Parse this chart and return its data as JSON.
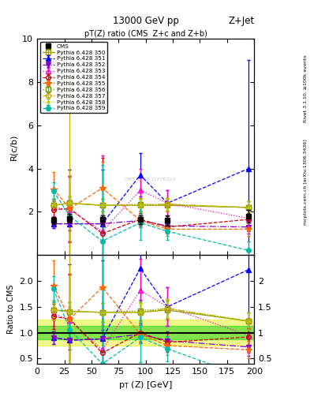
{
  "title_top": "13000 GeV pp",
  "title_right": "Z+Jet",
  "plot_title": "pT(Z) ratio (CMS  Z+c and Z+b)",
  "xlabel": "p_{T} (Z) [GeV]",
  "ylabel_main": "R(c/b)",
  "ylabel_ratio": "Ratio to CMS",
  "side_text": "Rivet 3.1.10, ≥100k events",
  "side_text2": "mcplots.cern.ch [arXiv:1306.3436]",
  "watermark": "CMS_2020_I1776223",
  "xlim": [
    0,
    200
  ],
  "ylim_main": [
    0,
    10
  ],
  "ylim_ratio": [
    0.4,
    2.5
  ],
  "yticks_main": [
    2,
    4,
    6,
    8,
    10
  ],
  "yticks_ratio": [
    0.5,
    1.0,
    1.5,
    2.0
  ],
  "cms_x": [
    15,
    30,
    60,
    95,
    120,
    195
  ],
  "cms_y": [
    1.6,
    1.7,
    1.65,
    1.65,
    1.6,
    1.8
  ],
  "cms_yerr": [
    0.15,
    0.2,
    0.2,
    0.2,
    0.25,
    0.3
  ],
  "series": [
    {
      "label": "Pythia 6.428 350",
      "color": "#999900",
      "linestyle": "-",
      "marker": "s",
      "marker_filled": false,
      "x": [
        15,
        30,
        60,
        95,
        120,
        195
      ],
      "y": [
        2.3,
        2.4,
        2.3,
        2.3,
        2.3,
        2.2
      ],
      "yerr": [
        0.3,
        0.3,
        0.3,
        0.3,
        0.3,
        0.3
      ]
    },
    {
      "label": "Pythia 6.428 351",
      "color": "#0000ff",
      "linestyle": "--",
      "marker": "^",
      "marker_filled": true,
      "x": [
        15,
        30,
        60,
        95,
        120,
        195
      ],
      "y": [
        1.45,
        1.45,
        1.45,
        3.7,
        2.4,
        4.0
      ],
      "yerr": [
        0.2,
        2.5,
        2.5,
        1.0,
        0.6,
        5.0
      ]
    },
    {
      "label": "Pythia 6.428 352",
      "color": "#8800cc",
      "linestyle": "-.",
      "marker": "v",
      "marker_filled": true,
      "x": [
        15,
        30,
        60,
        95,
        120,
        195
      ],
      "y": [
        1.45,
        1.45,
        1.45,
        1.6,
        1.35,
        1.3
      ],
      "yerr": [
        0.2,
        0.3,
        0.3,
        0.3,
        0.3,
        0.3
      ]
    },
    {
      "label": "Pythia 6.428 353",
      "color": "#ff00cc",
      "linestyle": ":",
      "marker": "^",
      "marker_filled": false,
      "x": [
        15,
        30,
        60,
        95,
        120,
        195
      ],
      "y": [
        2.2,
        2.1,
        1.1,
        3.0,
        2.4,
        1.7
      ],
      "yerr": [
        0.4,
        1.5,
        3.5,
        1.0,
        0.6,
        0.6
      ]
    },
    {
      "label": "Pythia 6.428 354",
      "color": "#cc0000",
      "linestyle": "--",
      "marker": "o",
      "marker_filled": false,
      "x": [
        15,
        30,
        60,
        95,
        120,
        195
      ],
      "y": [
        2.1,
        2.15,
        1.0,
        1.65,
        1.3,
        1.65
      ],
      "yerr": [
        0.4,
        1.5,
        3.5,
        0.3,
        0.3,
        0.3
      ]
    },
    {
      "label": "Pythia 6.428 355",
      "color": "#ff6600",
      "linestyle": "--",
      "marker": "*",
      "marker_filled": true,
      "x": [
        15,
        30,
        60,
        95,
        120,
        195
      ],
      "y": [
        3.05,
        2.15,
        3.1,
        1.6,
        1.2,
        1.2
      ],
      "yerr": [
        0.8,
        0.4,
        1.2,
        0.3,
        0.3,
        0.3
      ]
    },
    {
      "label": "Pythia 6.428 356",
      "color": "#669900",
      "linestyle": ":",
      "marker": "s",
      "marker_filled": false,
      "x": [
        15,
        30,
        60,
        95,
        120,
        195
      ],
      "y": [
        2.3,
        2.4,
        2.3,
        2.35,
        2.35,
        2.2
      ],
      "yerr": [
        0.3,
        0.3,
        0.3,
        0.3,
        0.3,
        0.3
      ]
    },
    {
      "label": "Pythia 6.428 357",
      "color": "#ccaa00",
      "linestyle": "-.",
      "marker": "D",
      "marker_filled": false,
      "x": [
        15,
        30,
        60,
        95,
        120,
        195
      ],
      "y": [
        2.3,
        2.4,
        2.3,
        2.3,
        2.35,
        2.2
      ],
      "yerr": [
        0.3,
        6.0,
        0.3,
        0.3,
        0.3,
        0.3
      ]
    },
    {
      "label": "Pythia 6.428 358",
      "color": "#aacc00",
      "linestyle": ":",
      "marker": ".",
      "marker_filled": true,
      "x": [
        15,
        30,
        60,
        95,
        120,
        195
      ],
      "y": [
        2.3,
        2.4,
        2.3,
        2.3,
        2.35,
        2.2
      ],
      "yerr": [
        0.3,
        0.3,
        0.3,
        0.3,
        0.3,
        0.3
      ]
    },
    {
      "label": "Pythia 6.428 359",
      "color": "#00bbaa",
      "linestyle": "--",
      "marker": "o",
      "marker_filled": true,
      "x": [
        15,
        30,
        60,
        95,
        120,
        195
      ],
      "y": [
        2.95,
        1.8,
        0.65,
        1.5,
        1.1,
        0.22
      ],
      "yerr": [
        0.4,
        0.4,
        3.5,
        0.8,
        0.4,
        0.4
      ]
    }
  ],
  "cms_band_y1": 0.87,
  "cms_band_y2": 1.13,
  "cms_band_color": "#00cc00",
  "cms_band_alpha": 0.45,
  "cms_band_outer_y1": 0.75,
  "cms_band_outer_y2": 1.25,
  "cms_band_outer_color": "#ddee00",
  "cms_band_outer_alpha": 0.45
}
